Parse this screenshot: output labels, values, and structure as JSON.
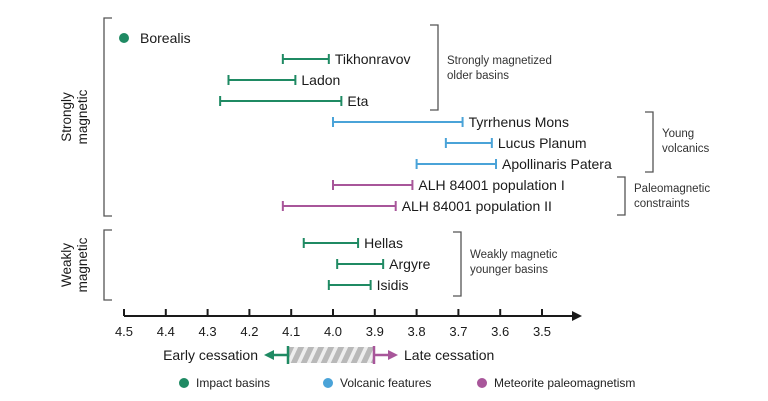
{
  "chart_data": {
    "type": "interval",
    "xlim": [
      4.5,
      3.5
    ],
    "ticks": [
      "4.5",
      "4.4",
      "4.3",
      "4.2",
      "4.1",
      "4.0",
      "3.9",
      "3.8",
      "3.7",
      "3.6",
      "3.5"
    ],
    "tick_values": [
      4.5,
      4.4,
      4.3,
      4.2,
      4.1,
      4.0,
      3.9,
      3.8,
      3.7,
      3.6,
      3.5
    ],
    "items": [
      {
        "name": "Borealis",
        "kind": "point",
        "value": 4.5,
        "category": "impact"
      },
      {
        "name": "Tikhonravov",
        "start": 4.12,
        "end": 4.01,
        "category": "impact"
      },
      {
        "name": "Ladon",
        "start": 4.25,
        "end": 4.09,
        "category": "impact"
      },
      {
        "name": "Eta",
        "start": 4.27,
        "end": 3.98,
        "category": "impact"
      },
      {
        "name": "Tyrrhenus Mons",
        "start": 4.0,
        "end": 3.69,
        "category": "volcanic"
      },
      {
        "name": "Lucus Planum",
        "start": 3.73,
        "end": 3.62,
        "category": "volcanic"
      },
      {
        "name": "Apollinaris Patera",
        "start": 3.8,
        "end": 3.61,
        "category": "volcanic"
      },
      {
        "name": "ALH 84001 population I",
        "start": 4.0,
        "end": 3.81,
        "category": "meteorite"
      },
      {
        "name": "ALH 84001 population II",
        "start": 4.12,
        "end": 3.85,
        "category": "meteorite"
      },
      {
        "name": "Hellas",
        "start": 4.07,
        "end": 3.94,
        "category": "impact"
      },
      {
        "name": "Argyre",
        "start": 3.99,
        "end": 3.88,
        "category": "impact"
      },
      {
        "name": "Isidis",
        "start": 4.01,
        "end": 3.91,
        "category": "impact"
      }
    ],
    "group_labels": [
      "Strongly magnetized older basins",
      "Young volcanics",
      "Paleomagnetic constraints",
      "Weakly magnetic younger basins"
    ],
    "side_labels": [
      "Strongly magnetic",
      "Weakly magnetic"
    ],
    "direction": {
      "early": "Early cessation",
      "late": "Late cessation"
    },
    "legend": [
      {
        "label": "Impact basins",
        "color": "#1f8a63"
      },
      {
        "label": "Volcanic features",
        "color": "#4aa3d8"
      },
      {
        "label": "Meteorite paleomagnetism",
        "color": "#a8569a"
      }
    ],
    "colors": {
      "impact": "#1f8a63",
      "volcanic": "#4aa3d8",
      "meteorite": "#a8569a",
      "axis": "#1a1a1a",
      "bracket": "#555555"
    }
  }
}
